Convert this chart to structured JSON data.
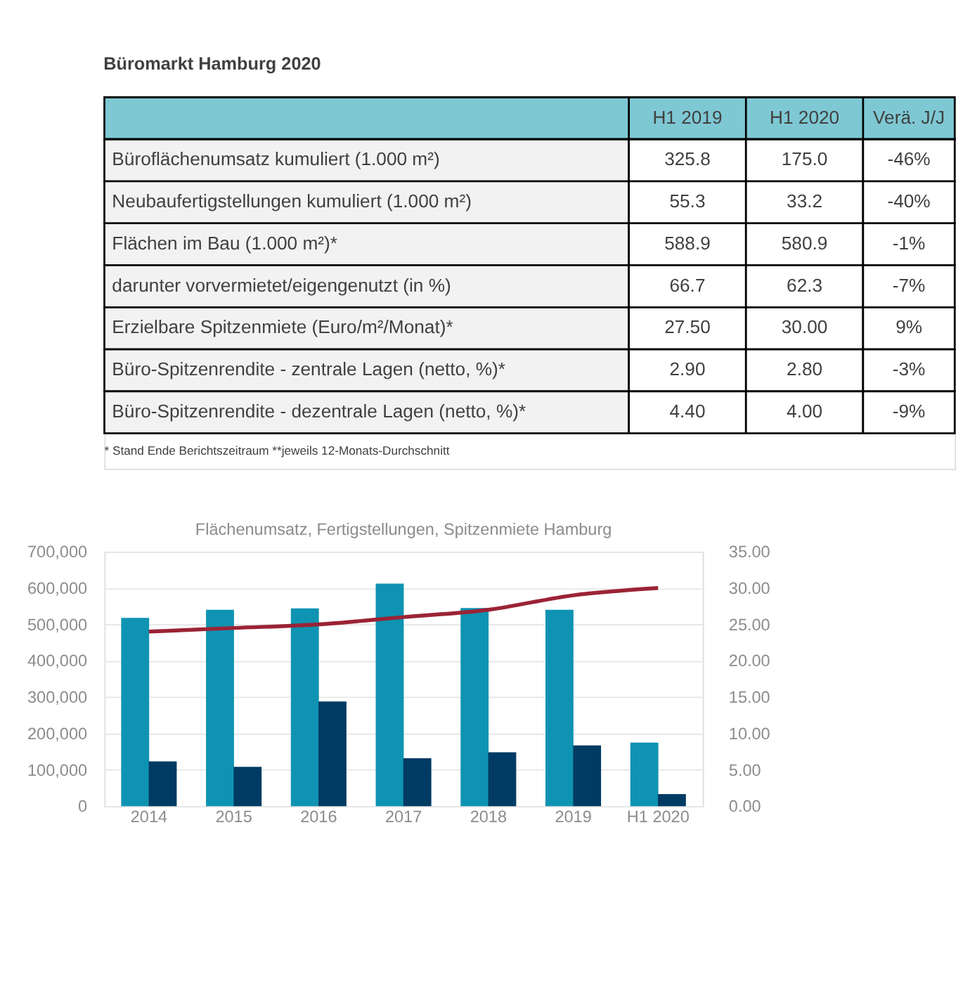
{
  "chart_data": [
    {
      "type": "other",
      "title": "Büromarkt Hamburg 2020",
      "annotations": [
        "H1 2019",
        "H1 2020",
        "Verä. J/J",
        "Büroflächenumsatz kumuliert (1.000 m²)",
        "325.8",
        "175.0",
        "-46%",
        "Neubaufertigstellungen kumuliert (1.000 m²)",
        "55.3",
        "33.2",
        "-40%",
        "Flächen im Bau (1.000 m²)*",
        "588.9",
        "580.9",
        "-1%",
        "  darunter vorvermietet/eigengenutzt (in %)",
        "66.7",
        "62.3",
        "-7%",
        "Erzielbare Spitzenmiete (Euro/m²/Monat)*",
        "27.50",
        "30.00",
        "9%",
        "Büro-Spitzenrendite - zentrale Lagen (netto, %)*",
        "2.90",
        "2.80",
        "-3%",
        "Büro-Spitzenrendite - dezentrale Lagen (netto, %)*",
        "4.40",
        "4.00",
        "-9%",
        "* Stand Ende Berichtszeitraum **jeweils 12-Monats-Durchschnitt"
      ]
    },
    {
      "type": "bar",
      "title": "Flächenumsatz, Fertigstellungen, Spitzenmiete Hamburg",
      "categories": [
        "2014",
        "2015",
        "2016",
        "2017",
        "2018",
        "2019",
        "H1 2020"
      ],
      "series": [
        {
          "color": "#0f93b2",
          "values": [
            518000,
            540000,
            544000,
            612000,
            545000,
            540000,
            175000
          ]
        },
        {
          "color": "#003b64",
          "values": [
            123000,
            108000,
            288000,
            132000,
            148000,
            167000,
            33000
          ]
        },
        {
          "type": "line",
          "axis": "y2",
          "color": "#9b2335",
          "values": [
            24.0,
            24.5,
            25.0,
            26.0,
            27.0,
            29.0,
            30.0
          ]
        }
      ],
      "ylim": [
        0,
        700000
      ],
      "yticks": [
        0,
        {
          "value": 100000,
          "label": "100,000"
        },
        {
          "value": 200000,
          "label": "200,000"
        },
        {
          "value": 300000,
          "label": "300,000"
        },
        {
          "value": 400000,
          "label": "400,000"
        },
        {
          "value": 500000,
          "label": "500,000"
        },
        {
          "value": 600000,
          "label": "600,000"
        },
        {
          "value": 700000,
          "label": "700,000"
        }
      ],
      "y2lim": [
        0,
        35
      ],
      "y2ticks": [
        {
          "value": 0,
          "label": "0.00"
        },
        {
          "value": 5,
          "label": "5.00"
        },
        {
          "value": 10,
          "label": "10.00"
        },
        {
          "value": 15,
          "label": "15.00"
        },
        {
          "value": 20,
          "label": "20.00"
        },
        {
          "value": 25,
          "label": "25.00"
        },
        {
          "value": 30,
          "label": "30.00"
        },
        {
          "value": 35,
          "label": "35.00"
        }
      ],
      "grid": "y",
      "legend": false
    }
  ]
}
